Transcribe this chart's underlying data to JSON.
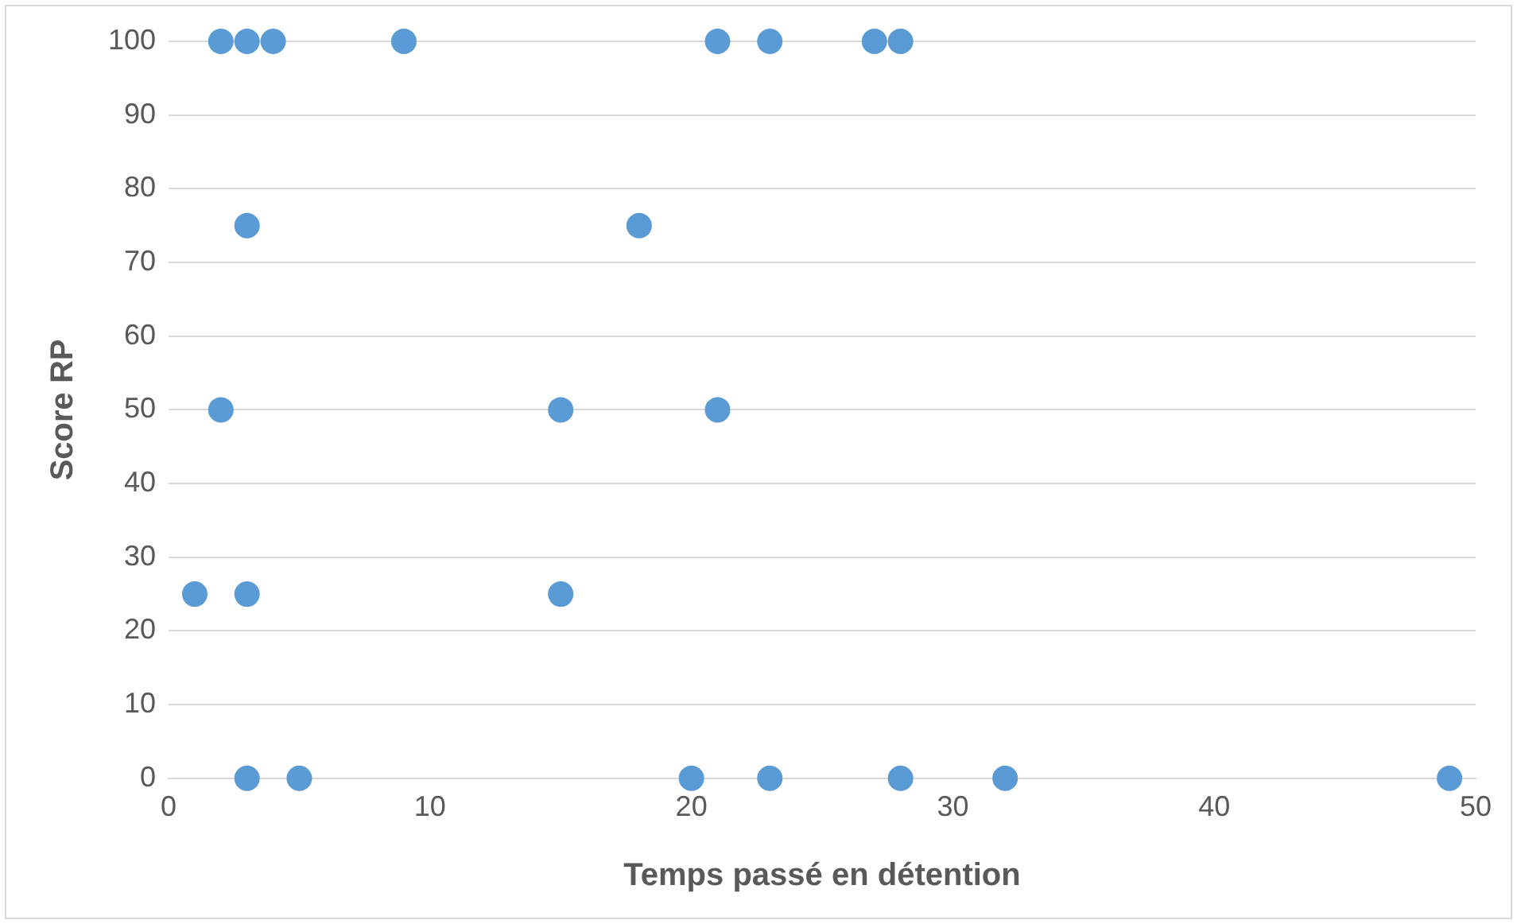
{
  "chart_data": {
    "type": "scatter",
    "xlabel": "Temps passé en détention",
    "ylabel": "Score RP",
    "series": [
      {
        "color": "#5b9bd5",
        "x": [
          2,
          3,
          4,
          9,
          21,
          23,
          27,
          28,
          3,
          18,
          2,
          15,
          21,
          1,
          3,
          15,
          3,
          5,
          20,
          23,
          28,
          32,
          49
        ],
        "values": [
          100,
          100,
          100,
          100,
          100,
          100,
          100,
          100,
          75,
          75,
          50,
          50,
          50,
          25,
          25,
          25,
          0,
          0,
          0,
          0,
          0,
          0,
          0
        ]
      }
    ],
    "xlim": [
      0,
      50
    ],
    "xticks": [
      0,
      10,
      20,
      30,
      40,
      50
    ],
    "ylim": [
      0,
      100
    ],
    "yticks": [
      0,
      10,
      20,
      30,
      40,
      50,
      60,
      70,
      80,
      90,
      100
    ],
    "grid": "y",
    "legend": false,
    "marker": "circle"
  }
}
